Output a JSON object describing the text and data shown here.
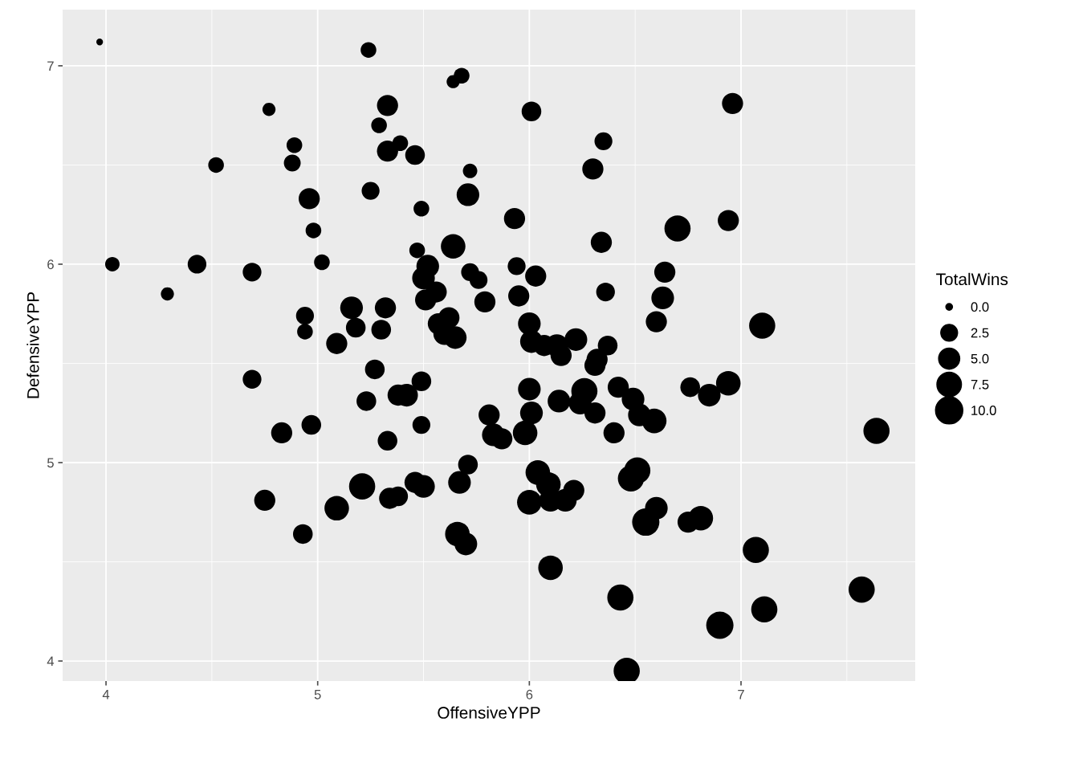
{
  "chart_data": {
    "type": "bubble",
    "xlabel": "OffensiveYPP",
    "ylabel": "DefensiveYPP",
    "legend_title": "TotalWins",
    "grid": true,
    "xlim": [
      3.795,
      7.823
    ],
    "ylim": [
      3.899,
      7.283
    ],
    "xticks": [
      4,
      5,
      6,
      7
    ],
    "yticks": [
      4,
      5,
      6,
      7
    ],
    "size_legend": [
      {
        "value": 0.6,
        "label": "0.0"
      },
      {
        "value": 3.8,
        "label": "2.5"
      },
      {
        "value": 6.0,
        "label": "5.0"
      },
      {
        "value": 8.1,
        "label": "7.5"
      },
      {
        "value": 10,
        "label": "10.0"
      }
    ],
    "series": [
      {
        "color": "#000000",
        "x": [
          3.97,
          5.24,
          5.68,
          5.64,
          4.77,
          5.33,
          6.01,
          6.96,
          5.29,
          4.89,
          4.88,
          4.52,
          5.39,
          5.33,
          5.46,
          6.35,
          5.72,
          6.3,
          4.96,
          5.25,
          5.71,
          5.49,
          5.93,
          4.98,
          6.7,
          6.94,
          6.34,
          5.64,
          5.47,
          5.02,
          4.03,
          4.43,
          5.52,
          5.94,
          4.29,
          4.69,
          5.72,
          6.03,
          6.64,
          5.5,
          5.76,
          5.56,
          6.36,
          5.95,
          5.51,
          6.63,
          5.79,
          5.16,
          5.32,
          4.94,
          5.62,
          7.1,
          6.0,
          6.6,
          5.57,
          5.18,
          5.3,
          4.94,
          5.6,
          5.65,
          6.22,
          6.01,
          6.07,
          6.13,
          6.37,
          5.09,
          6.15,
          6.32,
          6.31,
          5.27,
          4.69,
          5.49,
          6.94,
          6.42,
          6.0,
          6.76,
          5.38,
          5.42,
          6.85,
          6.26,
          6.49,
          6.14,
          5.23,
          6.24,
          6.31,
          6.01,
          6.52,
          5.81,
          6.59,
          7.64,
          4.83,
          4.97,
          5.49,
          6.4,
          5.98,
          5.83,
          5.87,
          5.33,
          5.71,
          6.51,
          6.04,
          6.48,
          5.67,
          5.46,
          5.5,
          5.21,
          6.09,
          6.21,
          5.34,
          5.38,
          4.75,
          6.0,
          6.1,
          6.17,
          6.6,
          5.09,
          6.75,
          6.81,
          6.55,
          4.93,
          5.66,
          5.7,
          7.07,
          6.1,
          7.57,
          6.43,
          7.11,
          6.9,
          6.46
        ],
        "values": [
          7.12,
          7.08,
          6.95,
          6.92,
          6.78,
          6.8,
          6.77,
          6.81,
          6.7,
          6.6,
          6.51,
          6.5,
          6.61,
          6.57,
          6.55,
          6.62,
          6.47,
          6.48,
          6.33,
          6.37,
          6.35,
          6.28,
          6.23,
          6.17,
          6.18,
          6.22,
          6.11,
          6.09,
          6.07,
          6.01,
          6.0,
          6.0,
          5.99,
          5.99,
          5.85,
          5.96,
          5.96,
          5.94,
          5.96,
          5.93,
          5.92,
          5.86,
          5.86,
          5.84,
          5.82,
          5.83,
          5.81,
          5.78,
          5.78,
          5.74,
          5.73,
          5.69,
          5.7,
          5.71,
          5.7,
          5.68,
          5.67,
          5.66,
          5.65,
          5.63,
          5.62,
          5.61,
          5.59,
          5.59,
          5.59,
          5.6,
          5.54,
          5.52,
          5.49,
          5.47,
          5.42,
          5.41,
          5.4,
          5.38,
          5.37,
          5.38,
          5.34,
          5.34,
          5.34,
          5.36,
          5.32,
          5.31,
          5.31,
          5.3,
          5.25,
          5.25,
          5.24,
          5.24,
          5.21,
          5.16,
          5.15,
          5.19,
          5.19,
          5.15,
          5.15,
          5.14,
          5.12,
          5.11,
          4.99,
          4.96,
          4.95,
          4.92,
          4.9,
          4.9,
          4.88,
          4.88,
          4.89,
          4.86,
          4.82,
          4.83,
          4.81,
          4.8,
          4.81,
          4.81,
          4.77,
          4.77,
          4.7,
          4.72,
          4.7,
          4.64,
          4.64,
          4.59,
          4.56,
          4.47,
          4.36,
          4.32,
          4.26,
          4.18,
          3.95
        ],
        "sizes": [
          0.6,
          3.3,
          3.3,
          2.3,
          2.3,
          6.0,
          5.2,
          6.0,
          3.3,
          3.3,
          3.8,
          3.3,
          3.3,
          6.0,
          5.2,
          4.3,
          2.8,
          6.0,
          6.0,
          4.3,
          6.9,
          3.3,
          6.0,
          3.3,
          9.2,
          6.0,
          6.0,
          8.1,
          3.3,
          3.3,
          2.8,
          4.7,
          6.9,
          4.3,
          2.3,
          4.7,
          4.3,
          6.0,
          6.0,
          6.9,
          4.3,
          6.0,
          4.7,
          6.0,
          6.0,
          6.9,
          6.0,
          6.9,
          6.0,
          4.3,
          6.0,
          9.2,
          6.9,
          6.0,
          6.0,
          5.2,
          5.2,
          3.3,
          6.9,
          6.9,
          6.9,
          6.9,
          6.0,
          6.9,
          5.2,
          6.0,
          6.0,
          6.0,
          6.0,
          5.2,
          4.7,
          5.2,
          8.1,
          6.0,
          6.9,
          5.2,
          6.0,
          6.9,
          6.9,
          9.2,
          6.9,
          6.9,
          5.2,
          6.9,
          6.0,
          6.9,
          6.9,
          6.0,
          8.1,
          9.2,
          6.0,
          5.2,
          4.3,
          6.0,
          8.1,
          6.9,
          6.0,
          5.2,
          5.2,
          9.2,
          8.1,
          9.2,
          6.9,
          6.0,
          6.9,
          9.2,
          8.1,
          6.0,
          6.0,
          5.2,
          6.0,
          8.1,
          6.9,
          6.9,
          6.9,
          8.1,
          6.0,
          8.1,
          10,
          5.2,
          8.1,
          6.9,
          9.2,
          8.1,
          9.2,
          9.2,
          9.2,
          10,
          9.2
        ]
      }
    ]
  }
}
